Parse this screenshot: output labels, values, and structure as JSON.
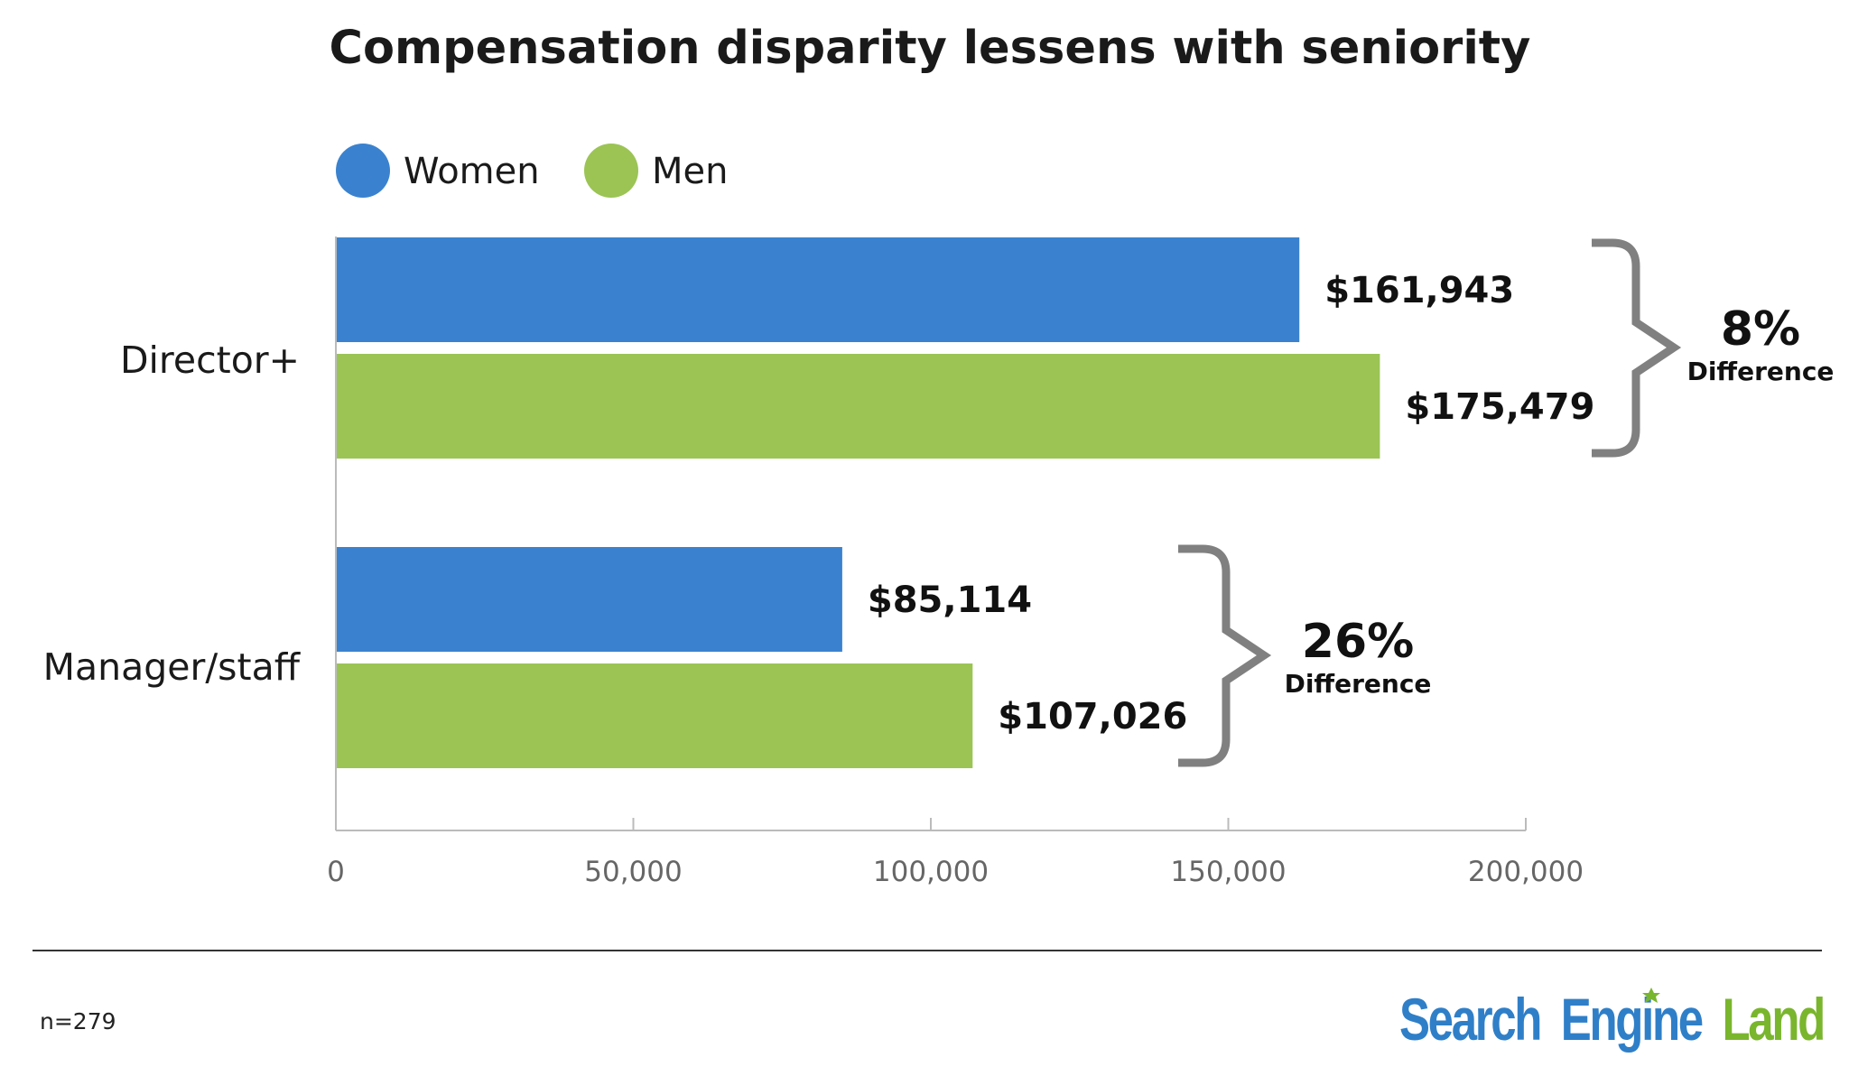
{
  "chart_data": {
    "type": "bar",
    "orientation": "horizontal",
    "title": "Compensation disparity lessens with seniority",
    "categories": [
      "Director+",
      "Manager/staff"
    ],
    "series": [
      {
        "name": "Women",
        "color": "#3a82cf",
        "values": [
          161943,
          85114
        ],
        "labels": [
          "$161,943",
          "$85,114"
        ]
      },
      {
        "name": "Men",
        "color": "#9bc455",
        "values": [
          175479,
          107026
        ],
        "labels": [
          "$175,479",
          "$107,026"
        ]
      }
    ],
    "differences": [
      {
        "category": "Director+",
        "percent": "8%",
        "label": "Difference"
      },
      {
        "category": "Manager/staff",
        "percent": "26%",
        "label": "Difference"
      }
    ],
    "xlim": [
      0,
      200000
    ],
    "xticks": [
      0,
      50000,
      100000,
      150000,
      200000
    ],
    "xtick_labels": [
      "0",
      "50,000",
      "100,000",
      "150,000",
      "200,000"
    ],
    "xlabel": "",
    "ylabel": "",
    "legend_position": "top-left",
    "grid": false
  },
  "footer": {
    "note": "n=279",
    "logo": {
      "search": "Search",
      "engine": "Engine",
      "land": "Land"
    }
  },
  "colors": {
    "women": "#3a82cf",
    "men": "#9bc455",
    "bracket": "#808080",
    "axis": "#bbbbbb",
    "logo_blue": "#2f7fc8",
    "logo_green": "#7ab52e"
  }
}
